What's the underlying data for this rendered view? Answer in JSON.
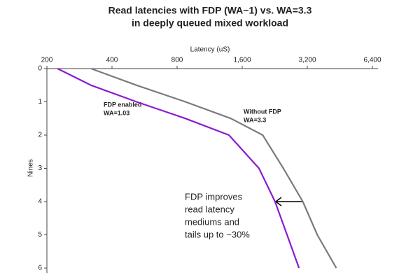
{
  "chart_data": {
    "type": "line",
    "title": [
      "Read latencies with FDP (WA~1) vs. WA=3.3",
      "in deeply queued mixed workload"
    ],
    "x_label": "Latency (uS)",
    "y_label": "Nines",
    "x_scale": "log2",
    "xlim": [
      200,
      6400
    ],
    "xticks": [
      200,
      400,
      800,
      {
        "value": 1600,
        "label": "1,600"
      },
      {
        "value": 3200,
        "label": "3,200"
      },
      {
        "value": 6400,
        "label": "6,400"
      }
    ],
    "ylim": [
      0,
      6
    ],
    "yticks": [
      0,
      1,
      2,
      3,
      4,
      5,
      6
    ],
    "y_inverted": true,
    "nines": [
      0,
      0.5,
      1,
      1.5,
      2,
      3,
      4,
      5,
      6
    ],
    "series": [
      {
        "name": [
          "FDP enabled",
          "WA=1.03"
        ],
        "color": "#8a1bd0",
        "values": [
          224,
          320,
          520,
          875,
          1390,
          1914,
          2270,
          2580,
          2930
        ]
      },
      {
        "name": [
          "Without FDP",
          "WA=3.3"
        ],
        "color": "#7a7a80",
        "values": [
          320,
          520,
          875,
          1420,
          1990,
          2480,
          3050,
          3560,
          4360
        ]
      }
    ],
    "annotation": [
      "FDP improves",
      "read latency",
      "mediums and",
      "tails up to ~30%"
    ]
  }
}
